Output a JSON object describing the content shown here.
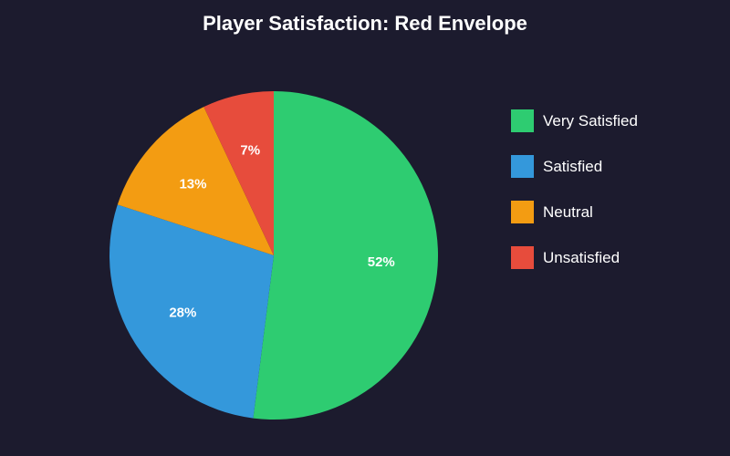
{
  "chart_data": {
    "type": "pie",
    "title": "Player Satisfaction: Red Envelope",
    "categories": [
      "Very Satisfied",
      "Satisfied",
      "Neutral",
      "Unsatisfied"
    ],
    "values": [
      52,
      28,
      13,
      7
    ],
    "labels": [
      "52%",
      "28%",
      "13%",
      "7%"
    ],
    "colors": [
      "#2ecc71",
      "#3498db",
      "#f39c12",
      "#e74c3c"
    ],
    "legend_position": "right",
    "start_angle": "top, clockwise"
  },
  "theme": {
    "background": "#1c1b2e",
    "text": "#ffffff"
  }
}
